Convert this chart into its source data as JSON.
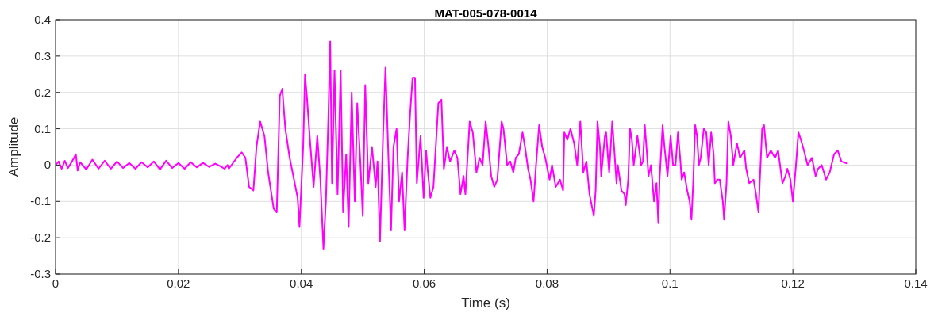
{
  "chart_data": {
    "type": "line",
    "title": "MAT-005-078-0014",
    "xlabel": "Time (s)",
    "ylabel": "Amplitude",
    "xlim": [
      0,
      0.14
    ],
    "xticks": [
      0,
      0.02,
      0.04,
      0.06,
      0.08,
      0.1,
      0.12,
      0.14
    ],
    "ylim": [
      -0.3,
      0.4
    ],
    "yticks": [
      -0.3,
      -0.2,
      -0.1,
      0,
      0.1,
      0.2,
      0.3,
      0.4
    ],
    "grid": true,
    "marker": "none",
    "line_style": "solid",
    "series": [
      {
        "color": "#ff00ff",
        "x": [
          0,
          0.0005,
          0.001,
          0.0015,
          0.002,
          0.0025,
          0.003,
          0.0033,
          0.0036,
          0.004,
          0.005,
          0.006,
          0.007,
          0.008,
          0.009,
          0.01,
          0.011,
          0.012,
          0.013,
          0.014,
          0.015,
          0.016,
          0.017,
          0.018,
          0.019,
          0.02,
          0.021,
          0.022,
          0.023,
          0.024,
          0.025,
          0.026,
          0.027,
          0.0275,
          0.028,
          0.0282,
          0.0295,
          0.0303,
          0.0309,
          0.0315,
          0.0322,
          0.0327,
          0.0333,
          0.034,
          0.0346,
          0.0355,
          0.036,
          0.0365,
          0.0369,
          0.0374,
          0.0381,
          0.0387,
          0.0394,
          0.0397,
          0.0403,
          0.0406,
          0.0409,
          0.0414,
          0.042,
          0.0426,
          0.0431,
          0.0436,
          0.044,
          0.0444,
          0.0447,
          0.045,
          0.0454,
          0.0459,
          0.0464,
          0.0468,
          0.0473,
          0.0477,
          0.0482,
          0.0487,
          0.0491,
          0.0496,
          0.05,
          0.0504,
          0.0509,
          0.0515,
          0.0521,
          0.0524,
          0.0528,
          0.0533,
          0.0537,
          0.0542,
          0.0546,
          0.055,
          0.0555,
          0.0559,
          0.0564,
          0.0568,
          0.0573,
          0.0577,
          0.0581,
          0.0585,
          0.0588,
          0.0594,
          0.0599,
          0.0603,
          0.0606,
          0.061,
          0.0615,
          0.0623,
          0.0628,
          0.0632,
          0.0637,
          0.0642,
          0.0649,
          0.0654,
          0.0659,
          0.0664,
          0.0667,
          0.0674,
          0.0679,
          0.0685,
          0.069,
          0.0695,
          0.07,
          0.0704,
          0.0709,
          0.0714,
          0.0719,
          0.0726,
          0.0729,
          0.0735,
          0.074,
          0.0745,
          0.0749,
          0.0754,
          0.076,
          0.0764,
          0.0769,
          0.0773,
          0.0778,
          0.0782,
          0.0787,
          0.0792,
          0.0797,
          0.0804,
          0.0808,
          0.0814,
          0.0821,
          0.0826,
          0.0828,
          0.0833,
          0.0838,
          0.0844,
          0.0849,
          0.0854,
          0.0859,
          0.0864,
          0.0869,
          0.0876,
          0.0879,
          0.0882,
          0.0886,
          0.0888,
          0.0894,
          0.0896,
          0.09,
          0.0901,
          0.0906,
          0.0909,
          0.0913,
          0.0915,
          0.0921,
          0.0926,
          0.0928,
          0.0932,
          0.0935,
          0.0938,
          0.0941,
          0.0947,
          0.0953,
          0.0956,
          0.0959,
          0.0963,
          0.0965,
          0.0969,
          0.0974,
          0.0978,
          0.0981,
          0.0983,
          0.0988,
          0.0991,
          0.0996,
          0.1001,
          0.1005,
          0.1009,
          0.1013,
          0.1017,
          0.1019,
          0.1023,
          0.1028,
          0.1032,
          0.1035,
          0.1038,
          0.1041,
          0.1044,
          0.1047,
          0.105,
          0.1055,
          0.1059,
          0.1063,
          0.1067,
          0.1071,
          0.1073,
          0.1077,
          0.1081,
          0.1086,
          0.1088,
          0.1092,
          0.1095,
          0.1099,
          0.1103,
          0.1109,
          0.1114,
          0.1121,
          0.1124,
          0.1129,
          0.1136,
          0.114,
          0.1144,
          0.1146,
          0.115,
          0.1153,
          0.1158,
          0.1164,
          0.1171,
          0.1176,
          0.1183,
          0.1188,
          0.1191,
          0.1196,
          0.12,
          0.1205,
          0.1209,
          0.1213,
          0.1218,
          0.1224,
          0.1231,
          0.1237,
          0.1241,
          0.1247,
          0.1254,
          0.126,
          0.1267,
          0.1273,
          0.1279,
          0.1287
        ],
        "values": [
          0,
          0.01,
          -0.01,
          0.012,
          -0.008,
          0.005,
          0.02,
          0.03,
          -0.015,
          0.008,
          -0.012,
          0.015,
          -0.01,
          0.012,
          -0.01,
          0.01,
          -0.008,
          0.006,
          -0.01,
          0.008,
          -0.006,
          0.01,
          -0.012,
          0.012,
          -0.008,
          0.006,
          -0.01,
          0.008,
          -0.006,
          0.006,
          -0.005,
          0.004,
          -0.005,
          -0.01,
          0,
          -0.01,
          0.02,
          0.035,
          0.02,
          -0.06,
          -0.07,
          0.05,
          0.12,
          0.08,
          -0.02,
          -0.12,
          -0.13,
          0.19,
          0.21,
          0.1,
          0.02,
          -0.03,
          -0.09,
          -0.17,
          0.05,
          0.25,
          0.19,
          0.07,
          -0.06,
          0.08,
          -0.04,
          -0.23,
          -0.1,
          0.13,
          0.34,
          -0.05,
          0.26,
          -0.08,
          0.26,
          -0.13,
          0.03,
          -0.17,
          0.2,
          -0.1,
          0.17,
          0.01,
          -0.14,
          0.22,
          -0.05,
          0.05,
          -0.06,
          0.01,
          -0.21,
          0.08,
          0.27,
          0.01,
          -0.18,
          0.05,
          0.1,
          -0.1,
          -0.02,
          -0.18,
          0.02,
          0.14,
          0.24,
          0.24,
          -0.05,
          0.08,
          -0.09,
          0.04,
          -0.02,
          -0.09,
          -0.06,
          0.17,
          0.18,
          -0.01,
          0.05,
          0.01,
          0.04,
          0.02,
          -0.08,
          -0.03,
          -0.08,
          0.12,
          0.09,
          -0.02,
          0.02,
          0,
          0.12,
          0.06,
          -0.03,
          -0.06,
          -0.04,
          0.12,
          0.1,
          0,
          0.01,
          -0.02,
          0.02,
          0.03,
          0.09,
          0.05,
          -0.01,
          -0.04,
          -0.1,
          0,
          0.11,
          0.05,
          0.02,
          -0.04,
          0,
          -0.06,
          -0.04,
          -0.07,
          0.09,
          0.07,
          0.1,
          0.06,
          0,
          0.12,
          -0.02,
          0.01,
          -0.08,
          -0.14,
          -0.07,
          0.12,
          0.05,
          -0.03,
          0.08,
          0.09,
          0,
          -0.02,
          0.12,
          0.05,
          -0.05,
          0,
          -0.07,
          -0.08,
          -0.11,
          -0.04,
          0.1,
          0.07,
          0,
          0.08,
          0,
          0.01,
          0.11,
          0.02,
          -0.03,
          0,
          -0.1,
          -0.05,
          -0.16,
          -0.04,
          0.11,
          0.05,
          -0.03,
          0.08,
          0,
          0,
          0.09,
          0.01,
          -0.04,
          -0.02,
          -0.07,
          -0.1,
          -0.15,
          -0.04,
          0.11,
          0.08,
          0,
          0.02,
          0.1,
          0.09,
          0,
          0.09,
          0.03,
          -0.05,
          -0.04,
          -0.04,
          -0.1,
          -0.15,
          -0.05,
          0.12,
          0.08,
          0,
          0.06,
          0.02,
          0.04,
          -0.01,
          -0.05,
          -0.04,
          -0.08,
          -0.13,
          -0.05,
          0.1,
          0.11,
          0.02,
          0.04,
          0.02,
          0.04,
          -0.05,
          -0.03,
          -0.01,
          -0.04,
          -0.1,
          0,
          0.09,
          0.07,
          0.04,
          0,
          0.02,
          -0.03,
          -0.01,
          0,
          -0.04,
          -0.02,
          0.03,
          0.04,
          0.01,
          0.005
        ]
      }
    ]
  }
}
